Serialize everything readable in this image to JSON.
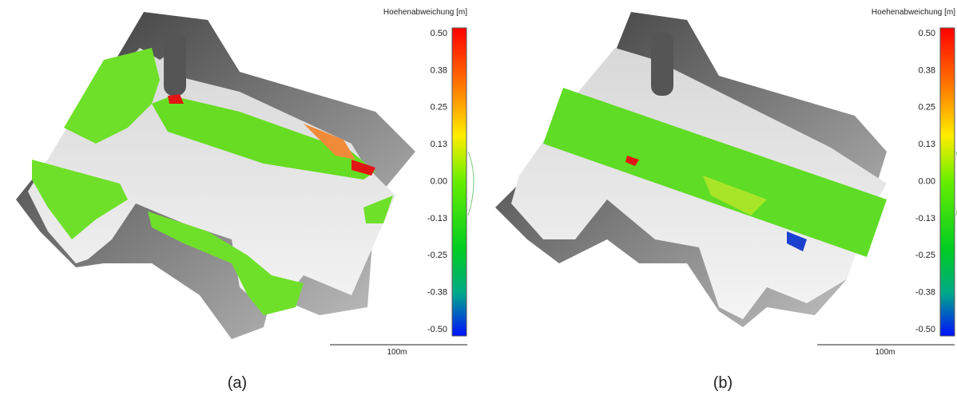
{
  "panels": [
    {
      "colorbar": {
        "title": "Hoehenabweichung [m]",
        "ticks": [
          "0.50",
          "0.38",
          "0.25",
          "0.13",
          "0.00",
          "-0.13",
          "-0.25",
          "-0.38",
          "-0.50"
        ]
      },
      "scale_label": "100m",
      "caption": "(a)"
    },
    {
      "colorbar": {
        "title": "Hoehenabweichung [m]",
        "ticks": [
          "0.50",
          "0.38",
          "0.25",
          "0.13",
          "0.00",
          "-0.13",
          "-0.25",
          "-0.38",
          "-0.50"
        ]
      },
      "scale_label": "100m",
      "caption": "(b)"
    }
  ]
}
